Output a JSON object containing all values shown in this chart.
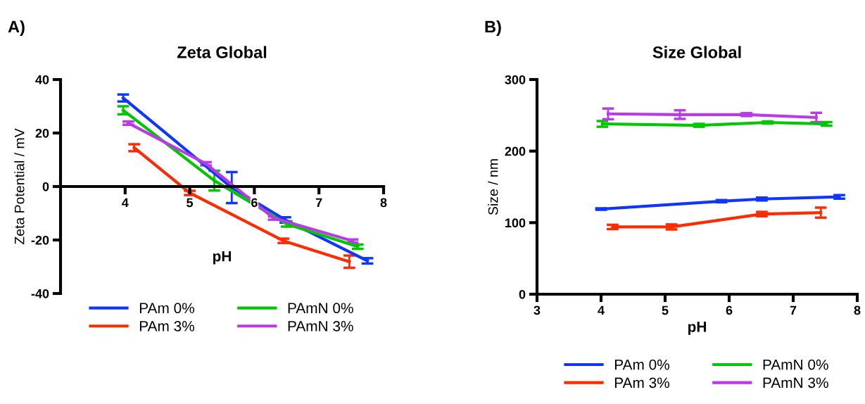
{
  "chart_data": [
    {
      "type": "line",
      "title": "Zeta Global",
      "xlabel": "pH",
      "ylabel": "Zeta Potential / mV",
      "annotations": [
        "A)"
      ],
      "xlim": [
        3,
        8
      ],
      "xticks": [
        4,
        5,
        6,
        7,
        8
      ],
      "ylim": [
        -40,
        40
      ],
      "yticks": [
        -40,
        -20,
        0,
        20,
        40
      ],
      "grid": false,
      "legend": "bottom",
      "marker": "none",
      "line_style": "solid",
      "series": [
        {
          "name": "PAm 0%",
          "color": "#0f35ff",
          "x": [
            3.97,
            5.65,
            6.48,
            7.75
          ],
          "values": [
            33.1,
            -0.4,
            -12.5,
            -27.8
          ],
          "errors": [
            1.3,
            5.8,
            1,
            1
          ]
        },
        {
          "name": "PAm 3%",
          "color": "#ff2a00",
          "x": [
            4.14,
            5.0,
            6.45,
            7.47
          ],
          "values": [
            14.5,
            -2.4,
            -20.3,
            -28.1
          ],
          "errors": [
            1.3,
            0.8,
            0.8,
            2.3
          ]
        },
        {
          "name": "PAmN 0%",
          "color": "#00c800",
          "x": [
            3.97,
            5.38,
            6.5,
            7.6
          ],
          "values": [
            28.5,
            2.2,
            -14.0,
            -22.5
          ],
          "errors": [
            1.5,
            3.7,
            1,
            0.8
          ]
        },
        {
          "name": "PAmN 3%",
          "color": "#b93ae6",
          "x": [
            4.05,
            5.25,
            6.3,
            7.52
          ],
          "values": [
            23.7,
            8.5,
            -11.8,
            -20.4
          ],
          "errors": [
            0.6,
            0.6,
            0.6,
            0.6
          ]
        }
      ]
    },
    {
      "type": "line",
      "title": "Size Global",
      "xlabel": "pH",
      "ylabel": "Size / nm",
      "annotations": [
        "B)"
      ],
      "xlim": [
        3,
        8
      ],
      "xticks": [
        3,
        4,
        5,
        6,
        7,
        8
      ],
      "ylim": [
        0,
        300
      ],
      "yticks": [
        0,
        100,
        200,
        300
      ],
      "grid": false,
      "legend": "bottom",
      "marker": "none",
      "line_style": "solid",
      "series": [
        {
          "name": "PAm 0%",
          "color": "#0f35ff",
          "x": [
            4.0,
            5.88,
            6.51,
            7.72
          ],
          "values": [
            119,
            130,
            133,
            136
          ],
          "errors": [
            1,
            1.5,
            2,
            2.5
          ]
        },
        {
          "name": "PAm 3%",
          "color": "#ff2a00",
          "x": [
            4.18,
            5.1,
            6.51,
            7.43
          ],
          "values": [
            94,
            94,
            112,
            114
          ],
          "errors": [
            3,
            3.5,
            3,
            7
          ]
        },
        {
          "name": "PAmN 0%",
          "color": "#00c800",
          "x": [
            4.02,
            5.53,
            6.6,
            7.52
          ],
          "values": [
            238,
            236,
            240,
            238
          ],
          "errors": [
            4,
            2,
            1.5,
            2.5
          ]
        },
        {
          "name": "PAmN 3%",
          "color": "#b93ae6",
          "x": [
            4.11,
            5.23,
            6.27,
            7.36
          ],
          "values": [
            252,
            251,
            251,
            247
          ],
          "errors": [
            7.5,
            6,
            2,
            6.5
          ]
        }
      ]
    }
  ]
}
